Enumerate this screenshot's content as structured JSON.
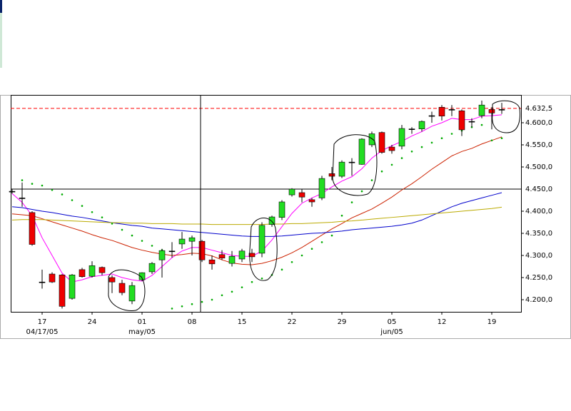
{
  "chart_data": {
    "type": "candlestick",
    "categories": [
      null,
      null,
      null,
      "17",
      null,
      null,
      null,
      null,
      "24",
      null,
      null,
      null,
      null,
      "01",
      null,
      null,
      null,
      null,
      "08",
      null,
      null,
      null,
      null,
      "15",
      null,
      null,
      null,
      null,
      "22",
      null,
      null,
      null,
      null,
      "29",
      null,
      null,
      null,
      null,
      "05",
      null,
      null,
      null,
      null,
      "12",
      null,
      null,
      null,
      null,
      "19",
      null
    ],
    "period_labels": [
      null,
      null,
      null,
      "04/17/05",
      null,
      null,
      null,
      null,
      null,
      null,
      null,
      null,
      null,
      "may/05",
      null,
      null,
      null,
      null,
      null,
      null,
      null,
      null,
      null,
      null,
      null,
      null,
      null,
      null,
      null,
      null,
      null,
      null,
      null,
      null,
      null,
      null,
      null,
      null,
      "jun/05",
      null,
      null,
      null,
      null,
      null,
      null,
      null,
      null,
      null,
      null,
      null
    ],
    "open": [
      4445,
      4430,
      4397,
      4240,
      4258,
      4256,
      4203,
      4268,
      4253,
      4273,
      4250,
      4237,
      4197,
      4245,
      4263,
      4290,
      4310,
      4326,
      4332,
      4332,
      4290,
      4302,
      4282,
      4292,
      4305,
      4305,
      4370,
      4386,
      4437,
      4442,
      4426,
      4430,
      4485,
      4479,
      4511,
      4506,
      4550,
      4578,
      4545,
      4547,
      4586,
      4586,
      4616,
      4635,
      4630,
      4627,
      4603,
      4616,
      4630,
      4630
    ],
    "high": [
      4450,
      4465,
      4400,
      4268,
      4262,
      4258,
      4258,
      4272,
      4287,
      4275,
      4255,
      4245,
      4240,
      4262,
      4285,
      4315,
      4330,
      4353,
      4345,
      4335,
      4300,
      4312,
      4310,
      4315,
      4315,
      4375,
      4390,
      4425,
      4452,
      4450,
      4430,
      4480,
      4500,
      4515,
      4520,
      4565,
      4580,
      4580,
      4550,
      4595,
      4590,
      4605,
      4625,
      4640,
      4640,
      4630,
      4610,
      4650,
      4635,
      4645
    ],
    "low": [
      4440,
      4410,
      4322,
      4225,
      4238,
      4180,
      4200,
      4250,
      4250,
      4255,
      4215,
      4210,
      4190,
      4242,
      4258,
      4250,
      4295,
      4315,
      4300,
      4285,
      4268,
      4290,
      4275,
      4285,
      4285,
      4296,
      4365,
      4380,
      4433,
      4420,
      4410,
      4425,
      4470,
      4475,
      4480,
      4505,
      4545,
      4530,
      4530,
      4540,
      4575,
      4580,
      4600,
      4605,
      4615,
      4570,
      4590,
      4610,
      4585,
      4620
    ],
    "close": [
      4445,
      4430,
      4325,
      4240,
      4240,
      4185,
      4256,
      4252,
      4277,
      4261,
      4240,
      4216,
      4232,
      4261,
      4282,
      4311,
      4310,
      4337,
      4340,
      4290,
      4281,
      4294,
      4298,
      4310,
      4297,
      4368,
      4387,
      4421,
      4450,
      4432,
      4421,
      4474,
      4479,
      4511,
      4511,
      4563,
      4575,
      4533,
      4537,
      4587,
      4586,
      4603,
      4616,
      4615,
      4630,
      4584,
      4603,
      4640,
      4622,
      4630
    ],
    "up_color": "#22dd22",
    "down_color": "#ee0000",
    "flat_color": "#000000",
    "lines": [
      {
        "color": "#ff00ff",
        "values": [
          4440,
          4420,
          4390,
          4340,
          4300,
          4260,
          4240,
          4245,
          4252,
          4255,
          4258,
          4250,
          4245,
          4242,
          4255,
          4275,
          4295,
          4310,
          4318,
          4318,
          4312,
          4306,
          4300,
          4298,
          4298,
          4310,
          4335,
          4365,
          4395,
          4418,
          4430,
          4440,
          4455,
          4468,
          4478,
          4496,
          4520,
          4537,
          4548,
          4558,
          4570,
          4580,
          4592,
          4600,
          4610,
          4607,
          4607,
          4615,
          4616,
          4618
        ]
      },
      {
        "color": "#cc2200",
        "values": [
          4394,
          4392,
          4390,
          4383,
          4376,
          4369,
          4362,
          4355,
          4347,
          4340,
          4334,
          4326,
          4318,
          4312,
          4307,
          4303,
          4300,
          4302,
          4305,
          4304,
          4299,
          4290,
          4283,
          4280,
          4279,
          4282,
          4288,
          4296,
          4306,
          4318,
          4332,
          4346,
          4360,
          4372,
          4385,
          4395,
          4405,
          4418,
          4432,
          4448,
          4462,
          4478,
          4495,
          4510,
          4525,
          4535,
          4542,
          4552,
          4560,
          4568
        ]
      },
      {
        "color": "#0000cc",
        "values": [
          4410,
          4408,
          4404,
          4400,
          4397,
          4393,
          4389,
          4386,
          4382,
          4378,
          4374,
          4371,
          4368,
          4366,
          4362,
          4360,
          4358,
          4356,
          4354,
          4352,
          4350,
          4348,
          4346,
          4344,
          4343,
          4343,
          4343,
          4344,
          4346,
          4348,
          4350,
          4351,
          4353,
          4355,
          4358,
          4360,
          4362,
          4364,
          4366,
          4369,
          4373,
          4380,
          4390,
          4400,
          4410,
          4418,
          4424,
          4430,
          4436,
          4442
        ]
      },
      {
        "color": "#bbaa00",
        "values": [
          4380,
          4381,
          4381,
          4381,
          4380,
          4379,
          4378,
          4377,
          4376,
          4375,
          4374,
          4374,
          4373,
          4373,
          4372,
          4372,
          4372,
          4371,
          4371,
          4371,
          4370,
          4370,
          4370,
          4370,
          4370,
          4370,
          4371,
          4371,
          4372,
          4372,
          4373,
          4374,
          4375,
          4377,
          4378,
          4380,
          4382,
          4384,
          4386,
          4388,
          4390,
          4392,
          4394,
          4396,
          4398,
          4400,
          4402,
          4404,
          4406,
          4409
        ]
      }
    ],
    "sar": {
      "color": "#00aa00",
      "values": [
        null,
        4470,
        4462,
        4458,
        4448,
        4438,
        4425,
        4412,
        4398,
        4386,
        4372,
        4358,
        4345,
        4333,
        4322,
        4312,
        4180,
        4185,
        4190,
        4195,
        4200,
        4210,
        4218,
        4228,
        4240,
        4248,
        4256,
        4268,
        4285,
        4300,
        4315,
        4330,
        4345,
        4390,
        4420,
        4445,
        4470,
        4490,
        4505,
        4520,
        4535,
        4545,
        4555,
        4565,
        4575,
        4582,
        4590,
        4595,
        4560,
        4565
      ]
    },
    "ylim": [
      4172.6,
      4662.9
    ],
    "yticks": [
      {
        "value": 4200,
        "label": "4.200,0"
      },
      {
        "value": 4250,
        "label": "4.250,0"
      },
      {
        "value": 4300,
        "label": "4.300,0"
      },
      {
        "value": 4350,
        "label": "4.350,0"
      },
      {
        "value": 4400,
        "label": "4.400,0"
      },
      {
        "value": 4500,
        "label": "4.500,0"
      },
      {
        "value": 4550,
        "label": "4.550,0"
      },
      {
        "value": 4600,
        "label": "4.600,0"
      }
    ],
    "crosshair": {
      "value": 4450,
      "label": "4.450,0",
      "color": "#0000ff"
    },
    "last_price": {
      "value": 4632.5,
      "label": "4.632,5",
      "color": "#ff0000"
    }
  }
}
